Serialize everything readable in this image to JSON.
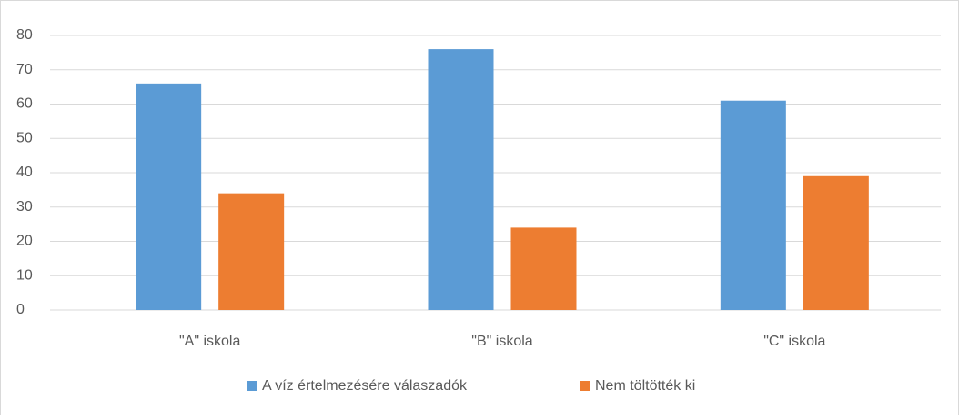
{
  "chart_data": {
    "type": "bar",
    "categories": [
      "\"A\" iskola",
      "\"B\" iskola",
      "\"C\" iskola"
    ],
    "series": [
      {
        "name": "A víz értelmezésére válaszadók",
        "color": "#5b9bd5",
        "values": [
          66,
          76,
          61
        ]
      },
      {
        "name": "Nem töltötték ki",
        "color": "#ed7d31",
        "values": [
          34,
          24,
          39
        ]
      }
    ],
    "ylim": [
      0,
      80
    ],
    "yticks": [
      0,
      10,
      20,
      30,
      40,
      50,
      60,
      70,
      80
    ],
    "grid": true,
    "legend": "bottom"
  }
}
